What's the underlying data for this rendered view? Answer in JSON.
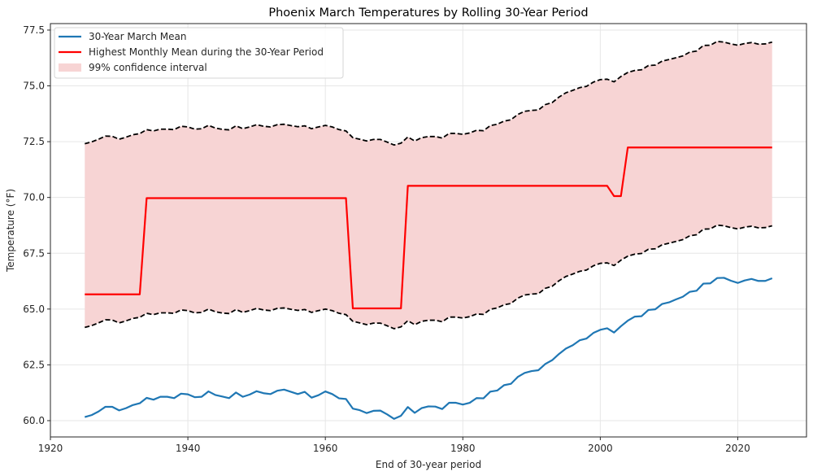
{
  "chart_data": {
    "type": "line",
    "title": "Phoenix March Temperatures by Rolling 30-Year Period",
    "xlabel": "End of 30-year period",
    "ylabel": "Temperature (°F)",
    "xlim": [
      1920,
      2030
    ],
    "ylim": [
      59.27,
      77.79
    ],
    "xticks": [
      1920,
      1940,
      1960,
      1980,
      2000,
      2020
    ],
    "xtick_labels": [
      "1920",
      "1940",
      "1960",
      "1980",
      "2000",
      "2020"
    ],
    "yticks": [
      60.0,
      62.5,
      65.0,
      67.5,
      70.0,
      72.5,
      75.0,
      77.5
    ],
    "ytick_labels": [
      "60.0",
      "62.5",
      "65.0",
      "67.5",
      "70.0",
      "72.5",
      "75.0",
      "77.5"
    ],
    "grid": true,
    "legend_position": "top-left",
    "legend": [
      {
        "label": "30-Year March Mean",
        "kind": "line",
        "color": "#1f77b4"
      },
      {
        "label": "Highest Monthly Mean during the 30-Year Period",
        "kind": "line",
        "color": "#ff0000"
      },
      {
        "label": "99% confidence interval",
        "kind": "patch",
        "color": "#f7d4d4"
      }
    ],
    "x": [
      1925,
      1926,
      1927,
      1928,
      1929,
      1930,
      1931,
      1932,
      1933,
      1934,
      1935,
      1936,
      1937,
      1938,
      1939,
      1940,
      1941,
      1942,
      1943,
      1944,
      1945,
      1946,
      1947,
      1948,
      1949,
      1950,
      1951,
      1952,
      1953,
      1954,
      1955,
      1956,
      1957,
      1958,
      1959,
      1960,
      1961,
      1962,
      1963,
      1964,
      1965,
      1966,
      1967,
      1968,
      1969,
      1970,
      1971,
      1972,
      1973,
      1974,
      1975,
      1976,
      1977,
      1978,
      1979,
      1980,
      1981,
      1982,
      1983,
      1984,
      1985,
      1986,
      1987,
      1988,
      1989,
      1990,
      1991,
      1992,
      1993,
      1994,
      1995,
      1996,
      1997,
      1998,
      1999,
      2000,
      2001,
      2002,
      2003,
      2004,
      2005,
      2006,
      2007,
      2008,
      2009,
      2010,
      2011,
      2012,
      2013,
      2014,
      2015,
      2016,
      2017,
      2018,
      2019,
      2020,
      2021,
      2022,
      2023,
      2024,
      2025
    ],
    "series": [
      {
        "name": "30-Year March Mean",
        "color": "#1f77b4",
        "style": "solid",
        "values": [
          60.16,
          60.25,
          60.41,
          60.62,
          60.62,
          60.46,
          60.56,
          60.7,
          60.78,
          61.02,
          60.94,
          61.07,
          61.07,
          61.01,
          61.21,
          61.18,
          61.05,
          61.07,
          61.31,
          61.15,
          61.08,
          61.01,
          61.26,
          61.07,
          61.17,
          61.32,
          61.23,
          61.19,
          61.34,
          61.39,
          61.29,
          61.19,
          61.29,
          61.03,
          61.14,
          61.31,
          61.19,
          61.0,
          60.97,
          60.54,
          60.47,
          60.34,
          60.44,
          60.45,
          60.28,
          60.08,
          60.22,
          60.61,
          60.35,
          60.56,
          60.64,
          60.63,
          60.52,
          60.8,
          60.8,
          60.72,
          60.8,
          61.01,
          61.0,
          61.3,
          61.35,
          61.59,
          61.65,
          61.96,
          62.14,
          62.22,
          62.26,
          62.54,
          62.71,
          62.99,
          63.23,
          63.38,
          63.6,
          63.68,
          63.93,
          64.07,
          64.14,
          63.95,
          64.23,
          64.48,
          64.66,
          64.68,
          64.96,
          64.99,
          65.23,
          65.3,
          65.43,
          65.55,
          65.77,
          65.82,
          66.14,
          66.15,
          66.39,
          66.4,
          66.27,
          66.17,
          66.28,
          66.35,
          66.26,
          66.26,
          66.38
        ]
      },
      {
        "name": "Highest Monthly Mean during the 30-Year Period",
        "color": "#ff0000",
        "style": "solid",
        "values": [
          65.66,
          65.66,
          65.66,
          65.66,
          65.66,
          65.66,
          65.66,
          65.66,
          65.66,
          69.97,
          69.97,
          69.97,
          69.97,
          69.97,
          69.97,
          69.97,
          69.97,
          69.97,
          69.97,
          69.97,
          69.97,
          69.97,
          69.97,
          69.97,
          69.97,
          69.97,
          69.97,
          69.97,
          69.97,
          69.97,
          69.97,
          69.97,
          69.97,
          69.97,
          69.97,
          69.97,
          69.97,
          69.97,
          69.97,
          65.03,
          65.03,
          65.03,
          65.03,
          65.03,
          65.03,
          65.03,
          65.03,
          70.52,
          70.52,
          70.52,
          70.52,
          70.52,
          70.52,
          70.52,
          70.52,
          70.52,
          70.52,
          70.52,
          70.52,
          70.52,
          70.52,
          70.52,
          70.52,
          70.52,
          70.52,
          70.52,
          70.52,
          70.52,
          70.52,
          70.52,
          70.52,
          70.52,
          70.52,
          70.52,
          70.52,
          70.52,
          70.52,
          70.06,
          70.06,
          72.24,
          72.24,
          72.24,
          72.24,
          72.24,
          72.24,
          72.24,
          72.24,
          72.24,
          72.24,
          72.24,
          72.24,
          72.24,
          72.24,
          72.24,
          72.24,
          72.24,
          72.24,
          72.24,
          72.24,
          72.24,
          72.24
        ]
      },
      {
        "name": "99% CI upper",
        "color": "#000000",
        "style": "dashed",
        "values": [
          72.41,
          72.49,
          72.61,
          72.75,
          72.74,
          72.61,
          72.7,
          72.81,
          72.86,
          73.04,
          72.98,
          73.06,
          73.06,
          73.04,
          73.19,
          73.16,
          73.06,
          73.08,
          73.23,
          73.11,
          73.05,
          73.03,
          73.21,
          73.08,
          73.16,
          73.26,
          73.19,
          73.16,
          73.26,
          73.28,
          73.22,
          73.17,
          73.21,
          73.08,
          73.16,
          73.23,
          73.16,
          73.04,
          72.98,
          72.68,
          72.61,
          72.53,
          72.6,
          72.6,
          72.48,
          72.35,
          72.43,
          72.71,
          72.53,
          72.68,
          72.73,
          72.73,
          72.66,
          72.87,
          72.87,
          72.83,
          72.89,
          73.01,
          72.99,
          73.22,
          73.28,
          73.42,
          73.48,
          73.72,
          73.86,
          73.9,
          73.92,
          74.16,
          74.25,
          74.5,
          74.69,
          74.8,
          74.92,
          74.98,
          75.17,
          75.28,
          75.3,
          75.18,
          75.42,
          75.6,
          75.69,
          75.72,
          75.91,
          75.93,
          76.11,
          76.18,
          76.26,
          76.34,
          76.51,
          76.56,
          76.81,
          76.82,
          76.99,
          76.96,
          76.88,
          76.82,
          76.9,
          76.94,
          76.87,
          76.88,
          76.96
        ]
      },
      {
        "name": "99% CI lower",
        "color": "#000000",
        "style": "dashed",
        "values": [
          64.18,
          64.26,
          64.38,
          64.52,
          64.51,
          64.38,
          64.47,
          64.58,
          64.63,
          64.81,
          64.75,
          64.83,
          64.83,
          64.81,
          64.96,
          64.93,
          64.83,
          64.85,
          65.0,
          64.88,
          64.82,
          64.8,
          64.98,
          64.85,
          64.93,
          65.03,
          64.96,
          64.93,
          65.03,
          65.05,
          64.99,
          64.94,
          64.98,
          64.85,
          64.93,
          65.0,
          64.93,
          64.81,
          64.75,
          64.45,
          64.38,
          64.3,
          64.37,
          64.37,
          64.25,
          64.12,
          64.2,
          64.48,
          64.3,
          64.45,
          64.5,
          64.5,
          64.43,
          64.64,
          64.64,
          64.6,
          64.66,
          64.78,
          64.76,
          64.99,
          65.05,
          65.19,
          65.25,
          65.49,
          65.63,
          65.67,
          65.69,
          65.93,
          66.02,
          66.27,
          66.46,
          66.57,
          66.69,
          66.75,
          66.94,
          67.05,
          67.07,
          66.95,
          67.19,
          67.37,
          67.46,
          67.49,
          67.68,
          67.7,
          67.88,
          67.95,
          68.03,
          68.11,
          68.28,
          68.33,
          68.58,
          68.59,
          68.76,
          68.73,
          68.65,
          68.59,
          68.67,
          68.71,
          68.64,
          68.65,
          68.73
        ]
      }
    ],
    "fill_between": {
      "label": "99% confidence interval",
      "color": "#f7d4d4",
      "upper": "99% CI upper",
      "lower": "99% CI lower"
    }
  }
}
